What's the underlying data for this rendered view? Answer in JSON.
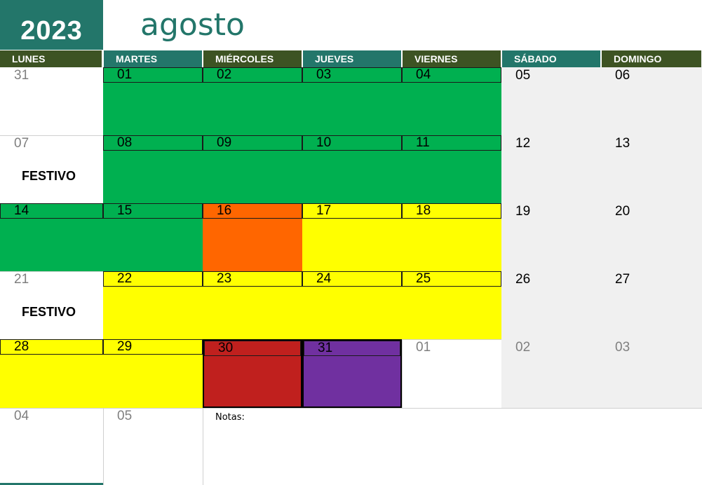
{
  "year": "2023",
  "month": "agosto",
  "colors": {
    "teal": "#23766a",
    "olive": "#3d5323",
    "green": "#00b050",
    "yellow": "#ffff00",
    "orange": "#ff6600",
    "red": "#c0201e",
    "purple": "#7030a0",
    "weekend": "#f0f0f0"
  },
  "days_header": [
    {
      "label": "LUNES",
      "color": "olive"
    },
    {
      "label": "MARTES",
      "color": "teal"
    },
    {
      "label": "MIÉRCOLES",
      "color": "olive"
    },
    {
      "label": "JUEVES",
      "color": "teal"
    },
    {
      "label": "VIERNES",
      "color": "olive"
    },
    {
      "label": "SÁBADO",
      "color": "teal"
    },
    {
      "label": "DOMINGO",
      "color": "olive"
    }
  ],
  "weeks": [
    [
      {
        "day": "31",
        "other": true
      },
      {
        "day": "01",
        "fill": "green"
      },
      {
        "day": "02",
        "fill": "green"
      },
      {
        "day": "03",
        "fill": "green"
      },
      {
        "day": "04",
        "fill": "green"
      },
      {
        "day": "05",
        "weekend": true
      },
      {
        "day": "06",
        "weekend": true
      }
    ],
    [
      {
        "day": "07",
        "other": true,
        "note": "FESTIVO"
      },
      {
        "day": "08",
        "fill": "green"
      },
      {
        "day": "09",
        "fill": "green"
      },
      {
        "day": "10",
        "fill": "green"
      },
      {
        "day": "11",
        "fill": "green"
      },
      {
        "day": "12",
        "weekend": true
      },
      {
        "day": "13",
        "weekend": true
      }
    ],
    [
      {
        "day": "14",
        "fill": "green"
      },
      {
        "day": "15",
        "fill": "green"
      },
      {
        "day": "16",
        "fill": "orange"
      },
      {
        "day": "17",
        "fill": "yellow"
      },
      {
        "day": "18",
        "fill": "yellow"
      },
      {
        "day": "19",
        "weekend": true
      },
      {
        "day": "20",
        "weekend": true
      }
    ],
    [
      {
        "day": "21",
        "other": true,
        "note": "FESTIVO"
      },
      {
        "day": "22",
        "fill": "yellow"
      },
      {
        "day": "23",
        "fill": "yellow"
      },
      {
        "day": "24",
        "fill": "yellow"
      },
      {
        "day": "25",
        "fill": "yellow"
      },
      {
        "day": "26",
        "weekend": true
      },
      {
        "day": "27",
        "weekend": true
      }
    ],
    [
      {
        "day": "28",
        "fill": "yellow"
      },
      {
        "day": "29",
        "fill": "yellow"
      },
      {
        "day": "30",
        "fill": "red",
        "boxed": true
      },
      {
        "day": "31",
        "fill": "purple",
        "boxed": true
      },
      {
        "day": "01",
        "other": true
      },
      {
        "day": "02",
        "other": true,
        "weekend": true
      },
      {
        "day": "03",
        "other": true,
        "weekend": true
      }
    ],
    [
      {
        "day": "04",
        "other": true
      },
      {
        "day": "05",
        "other": true
      }
    ]
  ],
  "notes_label": "Notas:"
}
